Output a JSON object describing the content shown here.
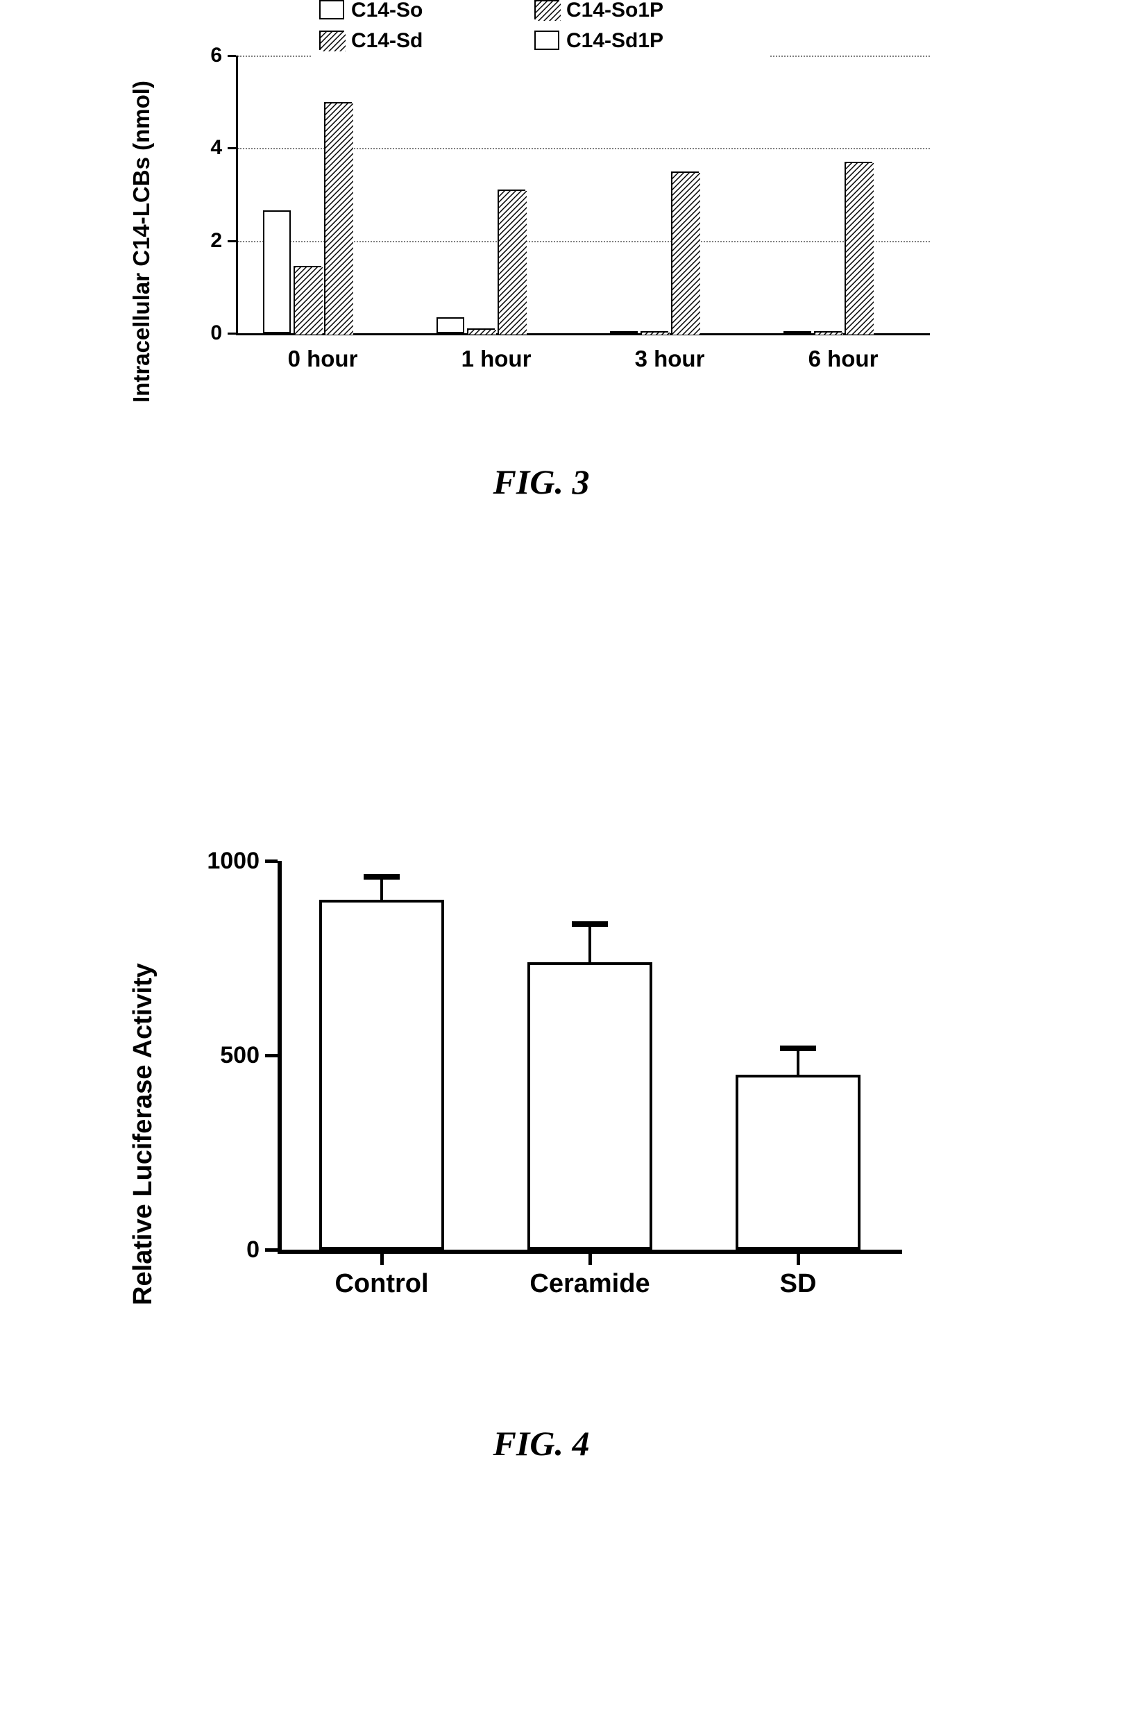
{
  "fig3": {
    "caption": "FIG. 3",
    "y_axis_title": "Intracellular C14-LCBs (nmol)",
    "y_axis_fontsize": 33,
    "tick_label_fontsize": 30,
    "cat_label_fontsize": 33,
    "ylim": [
      0,
      6
    ],
    "yticks": [
      0,
      2,
      4,
      6
    ],
    "categories": [
      "0 hour",
      "1 hour",
      "3 hour",
      "6 hour"
    ],
    "legend": [
      {
        "label": "C14-So",
        "pattern": "none"
      },
      {
        "label": "C14-So1P",
        "pattern": "diag-r"
      },
      {
        "label": "C14-Sd",
        "pattern": "diag-r"
      },
      {
        "label": "C14-Sd1P",
        "pattern": "none"
      }
    ],
    "legend_fontsize": 30,
    "series": {
      "C14-So": [
        2.65,
        0.35,
        0.05,
        0.05
      ],
      "C14-So1P": [
        1.45,
        0.1,
        0.05,
        0.05
      ],
      "C14-Sd": [
        5.0,
        3.1,
        3.5,
        3.7
      ],
      "C14-Sd1P": [
        0.0,
        0.0,
        0.0,
        0.0
      ]
    },
    "bar_border_color": "#000000",
    "bar_fill_color": "#ffffff",
    "hatch_color": "#000000",
    "background_color": "#ffffff",
    "grid_color": "#808080",
    "axis_color": "#000000"
  },
  "fig4": {
    "caption": "FIG. 4",
    "y_axis_title": "Relative Luciferase Activity",
    "y_axis_fontsize": 38,
    "tick_label_fontsize": 34,
    "cat_label_fontsize": 38,
    "ylim": [
      0,
      1000
    ],
    "yticks": [
      0,
      500,
      1000
    ],
    "categories": [
      "Control",
      "Ceramide",
      "SD"
    ],
    "values": [
      900,
      740,
      450
    ],
    "error_upper": [
      60,
      100,
      70
    ],
    "bar_fill_color": "#ffffff",
    "bar_border_color": "#000000",
    "axis_color": "#000000",
    "background_color": "#ffffff"
  }
}
